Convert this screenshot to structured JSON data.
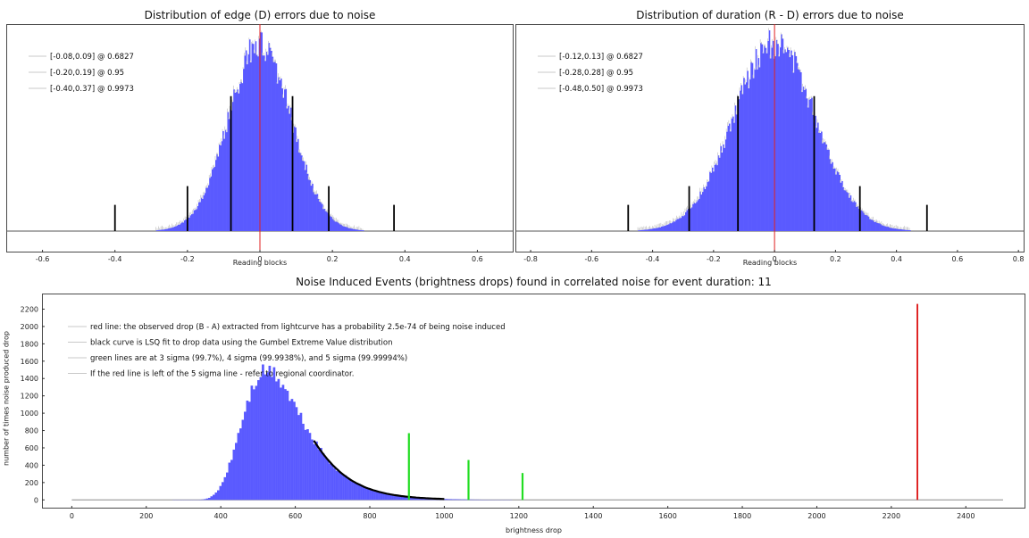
{
  "chart_data": [
    {
      "id": "edge",
      "type": "bar",
      "title": "Distribution of edge (D) errors due to noise",
      "xlabel": "Reading blocks",
      "ylabel": "",
      "xlim": [
        -0.7,
        0.7
      ],
      "xticks": [
        -0.6,
        -0.4,
        -0.2,
        0,
        0.2,
        0.4,
        0.6
      ],
      "xtick_labels": [
        "-0.6",
        "-0.4",
        "-0.2",
        "0",
        "0.2",
        "0.4",
        "0.6"
      ],
      "grid": false,
      "legend_position": "top-left",
      "legend": [
        "[-0.08,0.09] @ 0.6827",
        "[-0.20,0.19] @ 0.95",
        "[-0.40,0.37] @ 0.9973"
      ],
      "histogram": {
        "center": 0.0,
        "sigma": 0.086,
        "peak": 1.0,
        "color": "#5a5aff"
      },
      "red_line_x": 0.0,
      "bounds": [
        {
          "x": -0.08,
          "height": 0.72
        },
        {
          "x": 0.09,
          "height": 0.72
        },
        {
          "x": -0.2,
          "height": 0.24
        },
        {
          "x": 0.19,
          "height": 0.24
        },
        {
          "x": -0.4,
          "height": 0.14
        },
        {
          "x": 0.37,
          "height": 0.14
        }
      ]
    },
    {
      "id": "duration",
      "type": "bar",
      "title": "Distribution of duration (R - D) errors due to noise",
      "xlabel": "Reading blocks",
      "ylabel": "",
      "xlim": [
        -0.85,
        0.82
      ],
      "xticks": [
        -0.8,
        -0.6,
        -0.4,
        -0.2,
        0,
        0.2,
        0.4,
        0.6,
        0.8
      ],
      "xtick_labels": [
        "-0.8",
        "-0.6",
        "-0.4",
        "-0.2",
        "0",
        "0.2",
        "0.4",
        "0.6",
        "0.8"
      ],
      "grid": false,
      "legend_position": "top-left",
      "legend": [
        "[-0.12,0.13] @ 0.6827",
        "[-0.28,0.28] @ 0.95",
        "[-0.48,0.50] @ 0.9973"
      ],
      "histogram": {
        "center": 0.0,
        "sigma": 0.135,
        "peak": 1.0,
        "color": "#5a5aff"
      },
      "red_line_x": 0.0,
      "bounds": [
        {
          "x": -0.12,
          "height": 0.72
        },
        {
          "x": 0.13,
          "height": 0.72
        },
        {
          "x": -0.28,
          "height": 0.24
        },
        {
          "x": 0.28,
          "height": 0.24
        },
        {
          "x": -0.48,
          "height": 0.14
        },
        {
          "x": 0.5,
          "height": 0.14
        }
      ]
    },
    {
      "id": "events",
      "type": "bar",
      "title": "Noise Induced Events (brightness drops) found in correlated noise for event duration: 11",
      "xlabel": "brightness drop",
      "ylabel": "number of times noise produced drop",
      "xlim": [
        -80,
        2560
      ],
      "ylim": [
        -100,
        2380
      ],
      "xticks": [
        0,
        200,
        400,
        600,
        800,
        1000,
        1200,
        1400,
        1600,
        1800,
        2000,
        2200,
        2400
      ],
      "xtick_labels": [
        "0",
        "200",
        "400",
        "600",
        "800",
        "1000",
        "1200",
        "1400",
        "1600",
        "1800",
        "2000",
        "2200",
        "2400"
      ],
      "yticks": [
        0,
        200,
        400,
        600,
        800,
        1000,
        1200,
        1400,
        1600,
        1800,
        2000,
        2200
      ],
      "ytick_labels": [
        "0",
        "200",
        "400",
        "600",
        "800",
        "1000",
        "1200",
        "1400",
        "1600",
        "1800",
        "2000",
        "2200"
      ],
      "grid": false,
      "legend_position": "top-left",
      "legend": [
        "red line: the observed drop (B - A) extracted from lightcurve has a probability 2.5e-74 of being noise induced",
        "black curve is LSQ fit to drop data using the Gumbel Extreme Value distribution",
        "green lines are at 3 sigma (99.7%), 4 sigma (99.9938%), and 5 sigma (99.99994%)",
        "If the red line is left of the 5 sigma line - refer to regional coordinator."
      ],
      "histogram": {
        "peak_x": 525,
        "peak_y": 1480,
        "beta": 80,
        "range": [
          270,
          1180
        ],
        "color": "#5a5aff"
      },
      "fit_curve": {
        "x_start": 650,
        "x_end": 1000,
        "peak_x": 525,
        "peak_y": 1480,
        "beta": 80
      },
      "sigma_lines": [
        {
          "x": 905,
          "y": 770,
          "color": "#22dd22"
        },
        {
          "x": 1065,
          "y": 460,
          "color": "#22dd22"
        },
        {
          "x": 1210,
          "y": 310,
          "color": "#22dd22"
        }
      ],
      "observed_drop": {
        "x": 2270,
        "y": 2260,
        "color": "#dd1111"
      },
      "baseline_range": [
        0,
        2500
      ]
    }
  ]
}
